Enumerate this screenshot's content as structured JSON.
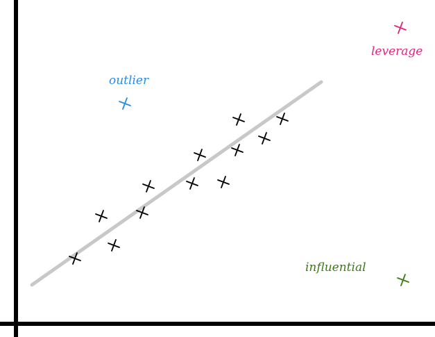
{
  "labels": {
    "outlier": "outlier",
    "leverage": "leverage",
    "influential": "influential"
  },
  "colors": {
    "axis": "#000000",
    "fit_line": "#c8c8c8",
    "points": "#000000",
    "outlier": "#2a8be0",
    "leverage": "#e0257e",
    "influential": "#3c7a12"
  },
  "icons": {
    "point": "cross-marker",
    "outlier": "cross-marker",
    "leverage": "cross-marker",
    "influential": "cross-marker"
  }
}
